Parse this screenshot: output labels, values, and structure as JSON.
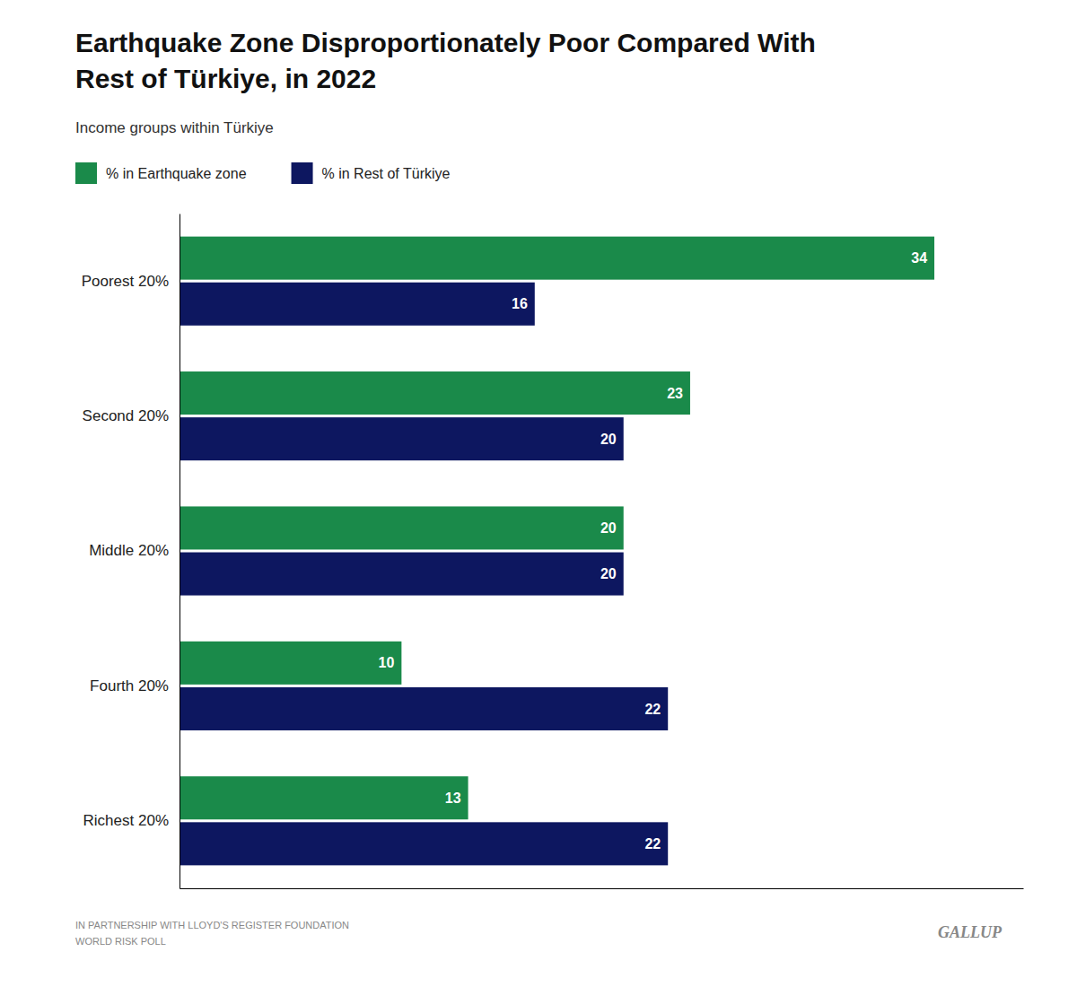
{
  "chart_data": {
    "type": "bar",
    "orientation": "horizontal",
    "title": "Earthquake Zone Disproportionately Poor Compared With\nRest of Türkiye, in 2022",
    "subtitle": "Income groups within Türkiye",
    "categories": [
      "Poorest 20%",
      "Second 20%",
      "Middle 20%",
      "Fourth 20%",
      "Richest 20%"
    ],
    "series": [
      {
        "name": "% in Earthquake zone",
        "color": "#1a8a4a",
        "values": [
          34,
          23,
          20,
          10,
          13
        ]
      },
      {
        "name": "% in Rest of Türkiye",
        "color": "#0d1760",
        "values": [
          16,
          20,
          20,
          22,
          22
        ]
      }
    ],
    "xlim": [
      0,
      38
    ],
    "grid": false,
    "legend": "top",
    "data_labels": true,
    "tick_labels": "y",
    "annotations": [
      "IN PARTNERSHIP WITH LLOYD'S REGISTER FOUNDATION\nWORLD RISK POLL",
      "GALLUP"
    ]
  }
}
